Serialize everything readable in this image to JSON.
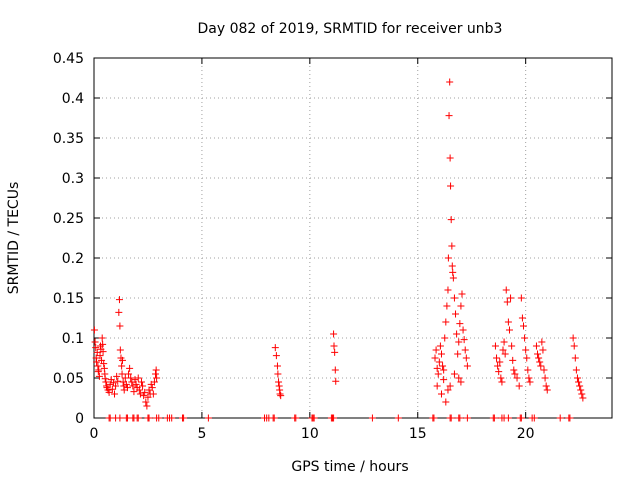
{
  "chart_data": {
    "type": "scatter",
    "title": "Day 082 of 2019, SRMTID for receiver unb3",
    "xlabel": "GPS time / hours",
    "ylabel": "SRMTID / TECUs",
    "xlim": [
      0,
      24
    ],
    "ylim": [
      0,
      0.45
    ],
    "xticks": [
      0,
      5,
      10,
      15,
      20
    ],
    "xtick_labels": [
      "0",
      "5",
      "10",
      "15",
      "20"
    ],
    "yticks": [
      0,
      0.05,
      0.1,
      0.15,
      0.2,
      0.25,
      0.3,
      0.35,
      0.4,
      0.45
    ],
    "ytick_labels": [
      "0",
      "0.05",
      "0.1",
      "0.15",
      "0.2",
      "0.25",
      "0.3",
      "0.35",
      "0.4",
      "0.45"
    ],
    "grid": true,
    "marker": "+",
    "series": [
      {
        "name": "SRMTID",
        "color": "#ff0000",
        "points": [
          [
            0.02,
            0.11
          ],
          [
            0.05,
            0.095
          ],
          [
            0.08,
            0.088
          ],
          [
            0.1,
            0.075
          ],
          [
            0.12,
            0.07
          ],
          [
            0.15,
            0.082
          ],
          [
            0.18,
            0.065
          ],
          [
            0.2,
            0.058
          ],
          [
            0.22,
            0.06
          ],
          [
            0.25,
            0.052
          ],
          [
            0.28,
            0.078
          ],
          [
            0.3,
            0.09
          ],
          [
            0.32,
            0.086
          ],
          [
            0.35,
            0.072
          ],
          [
            0.38,
            0.1
          ],
          [
            0.4,
            0.092
          ],
          [
            0.42,
            0.083
          ],
          [
            0.45,
            0.068
          ],
          [
            0.48,
            0.062
          ],
          [
            0.5,
            0.055
          ],
          [
            0.52,
            0.049
          ],
          [
            0.55,
            0.045
          ],
          [
            0.58,
            0.04
          ],
          [
            0.6,
            0.038
          ],
          [
            0.65,
            0.035
          ],
          [
            0.7,
            0.032
          ],
          [
            0.75,
            0.042
          ],
          [
            0.8,
            0.048
          ],
          [
            0.85,
            0.036
          ],
          [
            0.9,
            0.044
          ],
          [
            0.95,
            0.03
          ],
          [
            1.0,
            0.04
          ],
          [
            1.05,
            0.052
          ],
          [
            1.1,
            0.046
          ],
          [
            1.15,
            0.132
          ],
          [
            1.18,
            0.148
          ],
          [
            1.2,
            0.115
          ],
          [
            1.22,
            0.085
          ],
          [
            1.25,
            0.075
          ],
          [
            1.28,
            0.065
          ],
          [
            1.3,
            0.055
          ],
          [
            1.32,
            0.072
          ],
          [
            1.35,
            0.045
          ],
          [
            1.38,
            0.04
          ],
          [
            1.4,
            0.035
          ],
          [
            1.45,
            0.05
          ],
          [
            1.5,
            0.042
          ],
          [
            1.55,
            0.038
          ],
          [
            1.6,
            0.055
          ],
          [
            1.65,
            0.062
          ],
          [
            1.7,
            0.05
          ],
          [
            1.75,
            0.045
          ],
          [
            1.8,
            0.04
          ],
          [
            1.85,
            0.033
          ],
          [
            1.9,
            0.048
          ],
          [
            1.95,
            0.042
          ],
          [
            2.0,
            0.038
          ],
          [
            2.05,
            0.05
          ],
          [
            2.1,
            0.035
          ],
          [
            2.15,
            0.03
          ],
          [
            2.2,
            0.045
          ],
          [
            2.25,
            0.04
          ],
          [
            2.3,
            0.028
          ],
          [
            2.35,
            0.032
          ],
          [
            2.4,
            0.02
          ],
          [
            2.45,
            0.015
          ],
          [
            2.5,
            0.026
          ],
          [
            2.55,
            0.035
          ],
          [
            2.6,
            0.03
          ],
          [
            2.65,
            0.042
          ],
          [
            2.7,
            0.038
          ],
          [
            2.75,
            0.03
          ],
          [
            2.8,
            0.045
          ],
          [
            2.85,
            0.055
          ],
          [
            2.88,
            0.06
          ],
          [
            2.9,
            0.05
          ],
          [
            8.4,
            0.088
          ],
          [
            8.45,
            0.078
          ],
          [
            8.5,
            0.065
          ],
          [
            8.52,
            0.055
          ],
          [
            8.55,
            0.045
          ],
          [
            8.58,
            0.04
          ],
          [
            8.6,
            0.035
          ],
          [
            8.62,
            0.03
          ],
          [
            8.65,
            0.028
          ],
          [
            11.1,
            0.105
          ],
          [
            11.12,
            0.09
          ],
          [
            11.15,
            0.082
          ],
          [
            11.18,
            0.06
          ],
          [
            11.2,
            0.046
          ],
          [
            15.8,
            0.075
          ],
          [
            15.85,
            0.085
          ],
          [
            15.9,
            0.062
          ],
          [
            15.95,
            0.055
          ],
          [
            16.0,
            0.07
          ],
          [
            16.05,
            0.09
          ],
          [
            16.1,
            0.08
          ],
          [
            16.15,
            0.065
          ],
          [
            16.2,
            0.048
          ],
          [
            16.25,
            0.1
          ],
          [
            16.3,
            0.12
          ],
          [
            16.35,
            0.14
          ],
          [
            16.4,
            0.16
          ],
          [
            16.42,
            0.2
          ],
          [
            16.45,
            0.378
          ],
          [
            16.48,
            0.42
          ],
          [
            16.5,
            0.325
          ],
          [
            16.52,
            0.29
          ],
          [
            16.55,
            0.248
          ],
          [
            16.58,
            0.215
          ],
          [
            16.6,
            0.19
          ],
          [
            16.62,
            0.182
          ],
          [
            16.65,
            0.175
          ],
          [
            16.7,
            0.15
          ],
          [
            16.75,
            0.13
          ],
          [
            16.8,
            0.105
          ],
          [
            16.85,
            0.08
          ],
          [
            16.9,
            0.095
          ],
          [
            16.95,
            0.118
          ],
          [
            17.0,
            0.14
          ],
          [
            17.05,
            0.155
          ],
          [
            17.1,
            0.11
          ],
          [
            17.15,
            0.098
          ],
          [
            17.2,
            0.085
          ],
          [
            17.25,
            0.075
          ],
          [
            17.3,
            0.065
          ],
          [
            16.1,
            0.03
          ],
          [
            16.3,
            0.02
          ],
          [
            16.5,
            0.04
          ],
          [
            16.7,
            0.055
          ],
          [
            16.9,
            0.05
          ],
          [
            17.0,
            0.045
          ],
          [
            15.9,
            0.04
          ],
          [
            16.2,
            0.06
          ],
          [
            16.4,
            0.035
          ],
          [
            18.6,
            0.09
          ],
          [
            18.65,
            0.075
          ],
          [
            18.7,
            0.065
          ],
          [
            18.75,
            0.058
          ],
          [
            18.8,
            0.07
          ],
          [
            18.85,
            0.05
          ],
          [
            18.9,
            0.045
          ],
          [
            18.95,
            0.085
          ],
          [
            19.0,
            0.095
          ],
          [
            19.05,
            0.08
          ],
          [
            19.1,
            0.16
          ],
          [
            19.15,
            0.145
          ],
          [
            19.2,
            0.12
          ],
          [
            19.25,
            0.11
          ],
          [
            19.3,
            0.15
          ],
          [
            19.35,
            0.09
          ],
          [
            19.4,
            0.072
          ],
          [
            19.45,
            0.06
          ],
          [
            19.5,
            0.055
          ],
          [
            19.6,
            0.05
          ],
          [
            19.7,
            0.04
          ],
          [
            19.8,
            0.15
          ],
          [
            19.85,
            0.125
          ],
          [
            19.9,
            0.115
          ],
          [
            19.95,
            0.1
          ],
          [
            20.0,
            0.085
          ],
          [
            20.05,
            0.075
          ],
          [
            20.1,
            0.06
          ],
          [
            20.15,
            0.05
          ],
          [
            20.2,
            0.045
          ],
          [
            20.5,
            0.09
          ],
          [
            20.55,
            0.08
          ],
          [
            20.6,
            0.075
          ],
          [
            20.65,
            0.07
          ],
          [
            20.7,
            0.065
          ],
          [
            20.75,
            0.095
          ],
          [
            20.8,
            0.085
          ],
          [
            20.85,
            0.06
          ],
          [
            20.9,
            0.05
          ],
          [
            20.95,
            0.04
          ],
          [
            21.0,
            0.035
          ],
          [
            22.2,
            0.1
          ],
          [
            22.25,
            0.09
          ],
          [
            22.3,
            0.075
          ],
          [
            22.35,
            0.06
          ],
          [
            22.4,
            0.05
          ],
          [
            22.45,
            0.045
          ],
          [
            22.5,
            0.04
          ],
          [
            22.55,
            0.035
          ],
          [
            22.6,
            0.03
          ],
          [
            22.65,
            0.025
          ]
        ],
        "zero_points": [
          0.7,
          0.75,
          1.0,
          1.2,
          1.5,
          1.55,
          1.8,
          1.85,
          2.0,
          2.05,
          2.5,
          2.55,
          2.9,
          3.0,
          3.4,
          3.5,
          3.6,
          4.1,
          4.15,
          5.3,
          7.9,
          8.0,
          8.1,
          8.3,
          8.35,
          9.3,
          9.35,
          10.1,
          10.15,
          10.2,
          11.0,
          11.05,
          11.1,
          12.9,
          14.1,
          15.7,
          15.75,
          16.5,
          16.55,
          16.9,
          16.95,
          17.3,
          18.5,
          18.55,
          18.9,
          19.0,
          19.2,
          19.75,
          19.8,
          20.3,
          20.4,
          21.6,
          22.0,
          22.05
        ]
      }
    ]
  }
}
